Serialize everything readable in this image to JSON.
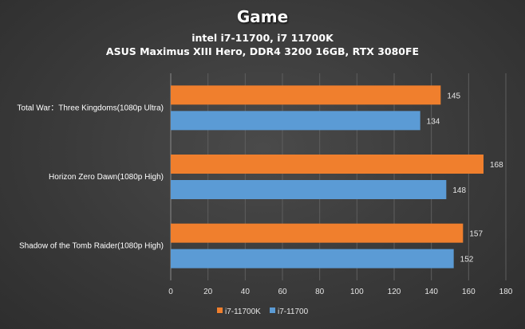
{
  "chart_data": {
    "type": "bar",
    "orientation": "horizontal",
    "title": "Game",
    "subtitle_lines": [
      "intel i7-11700,  i7 11700K",
      "ASUS Maximus XIII Hero, DDR4 3200  16GB, RTX 3080FE"
    ],
    "categories": [
      "Total War：Three Kingdoms(1080p Ultra)",
      "Horizon Zero Dawn(1080p High)",
      "Shadow of the Tomb Raider(1080p High)"
    ],
    "series": [
      {
        "name": "i7-11700K",
        "color": "#f07f2d",
        "values": [
          145,
          168,
          157
        ]
      },
      {
        "name": "i7-11700",
        "color": "#5b9bd5",
        "values": [
          134,
          148,
          152
        ]
      }
    ],
    "xlim": [
      0,
      180
    ],
    "xticks": [
      0,
      20,
      40,
      60,
      80,
      100,
      120,
      140,
      160,
      180
    ],
    "xlabel": "",
    "ylabel": "",
    "grid": "vertical",
    "legend_position": "bottom"
  }
}
